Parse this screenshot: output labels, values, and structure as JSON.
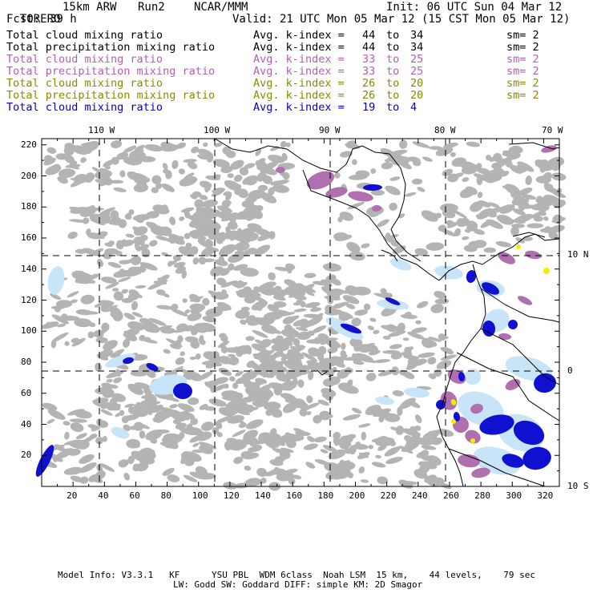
{
  "header": {
    "model": "TORERO",
    "resolution": "15km ARW",
    "run": "Run2",
    "org": "NCAR/MMM",
    "init": "Init: 06 UTC Sun 04 Mar 12",
    "fcst_label": "Fcst:",
    "fcst_value": "39 h",
    "valid": "Valid: 21 UTC Mon 05 Mar 12 (15 CST Mon 05 Mar 12)"
  },
  "legend": [
    {
      "name": "Total cloud mixing ratio",
      "range": "Avg. k-index =",
      "from": "44",
      "to_word": "to",
      "to": "34",
      "sm": "sm= 2",
      "color": "#000000"
    },
    {
      "name": "Total precipitation mixing ratio",
      "range": "Avg. k-index =",
      "from": "44",
      "to_word": "to",
      "to": "34",
      "sm": "sm= 2",
      "color": "#000000"
    },
    {
      "name": "Total cloud mixing ratio",
      "range": "Avg. k-index =",
      "from": "33",
      "to_word": "to",
      "to": "25",
      "sm": "sm= 2",
      "color": "#b060b0"
    },
    {
      "name": "Total precipitation mixing ratio",
      "range": "Avg. k-index =",
      "from": "33",
      "to_word": "to",
      "to": "25",
      "sm": "sm= 2",
      "color": "#b060b0"
    },
    {
      "name": "Total cloud mixing ratio",
      "range": "Avg. k-index =",
      "from": "26",
      "to_word": "to",
      "to": "20",
      "sm": "sm= 2",
      "color": "#8a8a00"
    },
    {
      "name": "Total precipitation mixing ratio",
      "range": "Avg. k-index =",
      "from": "26",
      "to_word": "to",
      "to": "20",
      "sm": "sm= 2",
      "color": "#8a8a00"
    },
    {
      "name": "Total cloud mixing ratio",
      "range": "Avg. k-index =",
      "from": "19",
      "to_word": "to",
      "to": "4",
      "sm": "",
      "color": "#0000cc"
    }
  ],
  "axes": {
    "lon_labels": [
      "110 W",
      "100 W",
      "90 W",
      "80 W",
      "70 W"
    ],
    "lat_labels": [
      "10 N",
      "0",
      "10 S"
    ],
    "x_ticks": [
      "20",
      "40",
      "60",
      "80",
      "100",
      "120",
      "140",
      "160",
      "180",
      "200",
      "220",
      "240",
      "260",
      "280",
      "300",
      "320"
    ],
    "y_ticks": [
      "220",
      "200",
      "180",
      "160",
      "140",
      "120",
      "100",
      "80",
      "60",
      "40",
      "20"
    ]
  },
  "footer": {
    "line1": "Model Info: V3.3.1   KF      YSU PBL  WDM 6class  Noah LSM  15 km,    44 levels,    79 sec",
    "line2": "LW: Godd SW: Goddard DIFF: simple KM: 2D Smagor"
  },
  "colors": {
    "cloud_gray": "#b4b4b4",
    "light_blue": "#c8e4f8",
    "purple": "#b070b0",
    "dark_blue": "#1010d0",
    "yellow": "#f0f000"
  }
}
